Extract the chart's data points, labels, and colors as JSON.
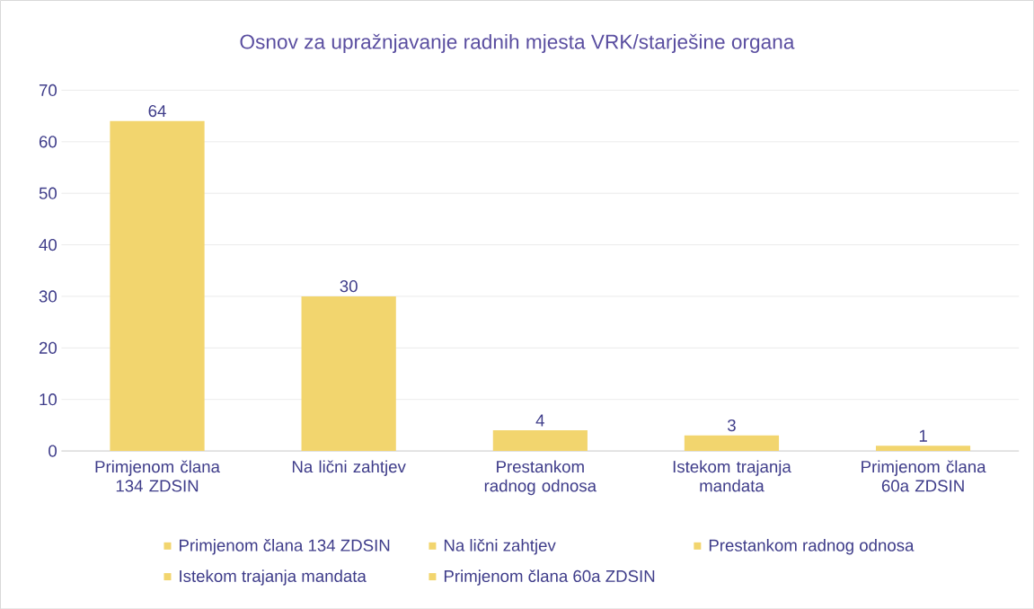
{
  "chart_data": {
    "type": "bar",
    "title": "Osnov za upražnjavanje radnih mjesta VRK/starješine organa",
    "categories": [
      "Primjenom člana 134 ZDSIN",
      "Na lični zahtjev",
      "Prestankom radnog odnosa",
      "Istekom trajanja mandata",
      "Primjenom člana 60a ZDSIN"
    ],
    "series": [
      {
        "name": "Primjenom člana 134 ZDSIN",
        "color": "#f2d56e",
        "values": [
          64,
          null,
          null,
          null,
          null
        ]
      },
      {
        "name": "Na lični zahtjev",
        "color": "#f2d56e",
        "values": [
          null,
          30,
          null,
          null,
          null
        ]
      },
      {
        "name": "Prestankom radnog odnosa",
        "color": "#f2d56e",
        "values": [
          null,
          null,
          4,
          null,
          null
        ]
      },
      {
        "name": "Istekom trajanja mandata",
        "color": "#f2d56e",
        "values": [
          null,
          null,
          null,
          3,
          null
        ]
      },
      {
        "name": "Primjenom člana 60a ZDSIN",
        "color": "#f2d56e",
        "values": [
          null,
          null,
          null,
          null,
          1
        ]
      }
    ],
    "ylim": [
      0,
      70
    ],
    "yticks": [
      0,
      10,
      20,
      30,
      40,
      50,
      60,
      70
    ],
    "grid": "y",
    "legend": "bottom",
    "data_labels": true
  }
}
